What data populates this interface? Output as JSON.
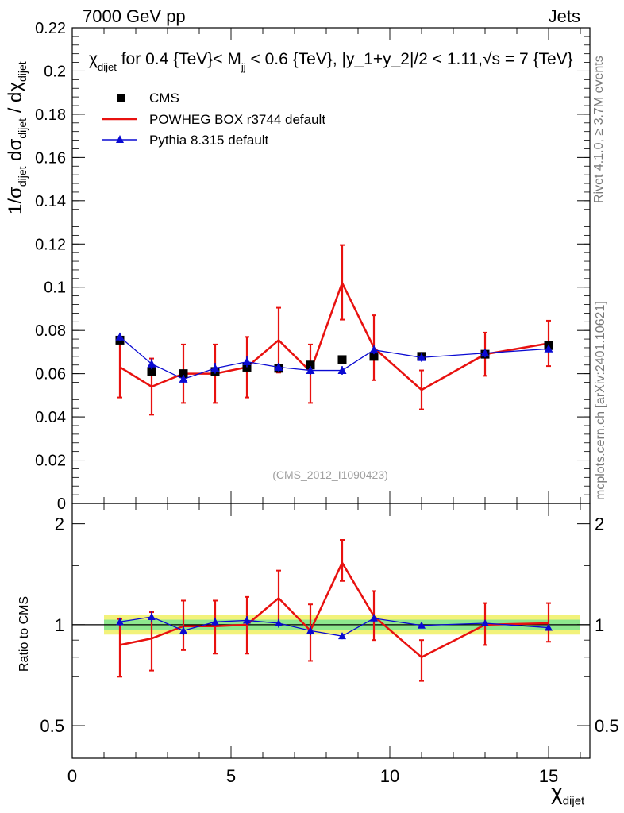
{
  "header": {
    "left_label": "7000 GeV pp",
    "right_label": "Jets"
  },
  "side_labels": {
    "rivet": "Rivet 4.1.0, ≥ 3.7M events",
    "mcplots": "mcplots.cern.ch [arXiv:2401.10621]"
  },
  "axis_labels": {
    "y_main_prefix": "1/σ",
    "y_main_sub1": "dijet",
    "y_main_mid": " dσ",
    "y_main_sub2": "dijet",
    "y_main_mid2": " / dχ",
    "y_main_sub3": "dijet",
    "y_ratio": "Ratio to CMS",
    "x_prefix": "χ",
    "x_sub": "dijet"
  },
  "chart_data": [
    {
      "type": "line",
      "panel": "main",
      "title": "χdijet for 0.4 {TeV}< Mjj < 0.6 {TeV}, |y_1+y_2|/2 < 1.11,√s = 7 {TeV}",
      "watermark": "(CMS_2012_I1090423)",
      "xlim": [
        0,
        16.3
      ],
      "ylim": [
        0,
        0.22
      ],
      "xticks": [
        0,
        5,
        10,
        15
      ],
      "yticks": [
        0,
        0.02,
        0.04,
        0.06,
        0.08,
        0.1,
        0.12,
        0.14,
        0.16,
        0.18,
        0.2,
        0.22
      ],
      "ytick_labels": [
        "0",
        "0.02",
        "0.04",
        "0.06",
        "0.08",
        "0.1",
        "0.12",
        "0.14",
        "0.16",
        "0.18",
        "0.2",
        "0.22"
      ],
      "x": [
        1.5,
        2.5,
        3.5,
        4.5,
        5.5,
        6.5,
        7.5,
        8.5,
        9.5,
        11,
        13,
        15
      ],
      "bin_edges": [
        1,
        2,
        3,
        4,
        5,
        6,
        7,
        8,
        9,
        10,
        12,
        14,
        16
      ],
      "legend_position": "top-left",
      "series": [
        {
          "name": "CMS",
          "color": "#000000",
          "marker": "square",
          "values": [
            0.0755,
            0.061,
            0.06,
            0.061,
            0.063,
            0.0625,
            0.064,
            0.0665,
            0.068,
            0.068,
            0.069,
            0.073
          ]
        },
        {
          "name": "POWHEG BOX r3744 default",
          "color": "#e8110f",
          "marker": "none",
          "values": [
            0.063,
            0.054,
            0.06,
            0.06,
            0.063,
            0.0755,
            0.061,
            0.102,
            0.072,
            0.0525,
            0.069,
            0.074
          ],
          "err_low": [
            0.014,
            0.013,
            0.0135,
            0.0135,
            0.014,
            0.015,
            0.0145,
            0.017,
            0.015,
            0.009,
            0.01,
            0.0105
          ],
          "err_high": [
            0.014,
            0.013,
            0.0135,
            0.0135,
            0.014,
            0.015,
            0.0125,
            0.0175,
            0.015,
            0.009,
            0.01,
            0.0105
          ]
        },
        {
          "name": "Pythia 8.315 default",
          "color": "#0a0ad2",
          "marker": "triangle",
          "values": [
            0.077,
            0.0645,
            0.0575,
            0.0625,
            0.0655,
            0.063,
            0.0615,
            0.0615,
            0.071,
            0.0675,
            0.0695,
            0.0715
          ],
          "err": [
            0.002,
            0.0025,
            0.002,
            0.0025,
            0.0025,
            0.002,
            0.002,
            0.002,
            0.002,
            0.002,
            0.002,
            0.002
          ]
        }
      ]
    },
    {
      "type": "line",
      "panel": "ratio",
      "ylabel": "Ratio to CMS",
      "xlabel": "χdijet",
      "yscale": "log",
      "ylim": [
        0.4,
        2.3
      ],
      "xlim": [
        0,
        16.3
      ],
      "yticks": [
        0.5,
        1,
        2
      ],
      "ytick_labels": [
        "0.5",
        "1",
        "2"
      ],
      "xticks": [
        0,
        5,
        10,
        15
      ],
      "xtick_labels": [
        "0",
        "5",
        "10",
        "15"
      ],
      "band_inner": 1.035,
      "band_outer": 1.07,
      "band_inner_color": "#8ee88e",
      "band_outer_color": "#f2f27a",
      "x": [
        1.5,
        2.5,
        3.5,
        4.5,
        5.5,
        6.5,
        7.5,
        8.5,
        9.5,
        11,
        13,
        15
      ],
      "series": [
        {
          "name": "POWHEG BOX r3744 default",
          "color": "#e8110f",
          "values": [
            0.87,
            0.91,
            0.99,
            0.99,
            1.0,
            1.2,
            0.96,
            1.53,
            1.06,
            0.8,
            1.0,
            1.01
          ],
          "err_low": [
            0.17,
            0.18,
            0.15,
            0.17,
            0.18,
            0.2,
            0.18,
            0.18,
            0.16,
            0.12,
            0.13,
            0.12
          ],
          "err_high": [
            0.17,
            0.18,
            0.19,
            0.19,
            0.21,
            0.25,
            0.19,
            0.26,
            0.2,
            0.1,
            0.16,
            0.15
          ]
        },
        {
          "name": "Pythia 8.315 default",
          "color": "#0a0ad2",
          "values": [
            1.02,
            1.055,
            0.96,
            1.02,
            1.03,
            1.01,
            0.96,
            0.925,
            1.045,
            0.995,
            1.01,
            0.98
          ],
          "err": [
            0.03,
            0.04,
            0.03,
            0.03,
            0.03,
            0.03,
            0.03,
            0.02,
            0.03,
            0.02,
            0.02,
            0.02
          ]
        }
      ]
    }
  ]
}
